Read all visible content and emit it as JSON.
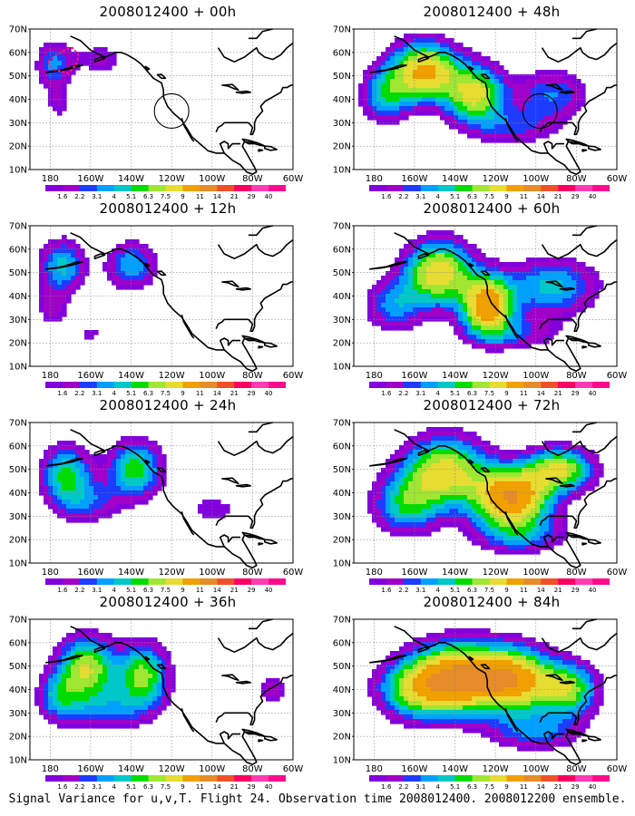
{
  "figure": {
    "caption": "Signal Variance for u,v,T. Flight 24. Observation time 2008012400. 2008012200 ensemble."
  },
  "axes": {
    "lat_ticks": [
      "70N",
      "60N",
      "50N",
      "40N",
      "30N",
      "20N",
      "10N"
    ],
    "lon_ticks": [
      "180",
      "160W",
      "140W",
      "120W",
      "100W",
      "80W",
      "60W"
    ],
    "lon_range": [
      170,
      300
    ],
    "lat_range": [
      10,
      70
    ],
    "grid": true
  },
  "colorbar": {
    "labels": [
      "1.6",
      "2.2",
      "3.1",
      "4",
      "5.1",
      "6.3",
      "7.5",
      "9",
      "11",
      "14",
      "21",
      "29",
      "40"
    ],
    "colors": [
      "#8200dc",
      "#a000c8",
      "#1e3cff",
      "#00a0ff",
      "#00c8c8",
      "#00dc00",
      "#a0e632",
      "#e6dc32",
      "#f0a000",
      "#e68c28",
      "#f05028",
      "#fa0064",
      "#ff3cb4"
    ]
  },
  "chart_data": {
    "type": "heatmap",
    "variable": "Signal Variance for u,v,T",
    "levels": [
      1.6,
      2.2,
      3.1,
      4,
      5.1,
      6.3,
      7.5,
      9,
      11,
      14,
      21,
      29,
      40
    ],
    "panels": [
      {
        "title": "2008012400 + 00h",
        "lead_hours": 0,
        "blobs": [
          [
            182,
            55,
            9,
            10,
            4.2
          ],
          [
            205,
            57,
            13,
            7,
            2.4
          ],
          [
            184,
            38,
            7,
            8,
            2.0
          ],
          [
            290,
            34,
            10,
            5,
            1.2
          ]
        ],
        "circle": [
          240,
          35
        ],
        "target_box": true
      },
      {
        "title": "2008012400 + 12h",
        "lead_hours": 12,
        "blobs": [
          [
            186,
            53,
            11,
            11,
            5.5
          ],
          [
            220,
            53,
            12,
            10,
            5.0
          ],
          [
            181,
            35,
            9,
            9,
            2.4
          ],
          [
            200,
            24,
            8,
            6,
            1.8
          ],
          [
            270,
            42,
            12,
            5,
            1.3
          ]
        ]
      },
      {
        "title": "2008012400 + 24h",
        "lead_hours": 24,
        "blobs": [
          [
            188,
            48,
            12,
            12,
            6.5
          ],
          [
            222,
            50,
            13,
            12,
            7.0
          ],
          [
            198,
            36,
            16,
            9,
            3.5
          ],
          [
            260,
            33,
            14,
            7,
            2.2
          ]
        ]
      },
      {
        "title": "2008012400 + 36h",
        "lead_hours": 36,
        "blobs": [
          [
            198,
            49,
            14,
            13,
            9.0
          ],
          [
            226,
            46,
            12,
            13,
            8.0
          ],
          [
            184,
            37,
            10,
            10,
            4.5
          ],
          [
            208,
            32,
            22,
            9,
            3.5
          ],
          [
            290,
            40,
            9,
            8,
            2.5
          ]
        ]
      },
      {
        "title": "2008012400 + 48h",
        "lead_hours": 48,
        "blobs": [
          [
            205,
            52,
            16,
            12,
            11.5
          ],
          [
            230,
            42,
            14,
            12,
            9.5
          ],
          [
            186,
            42,
            12,
            11,
            5.5
          ],
          [
            268,
            42,
            18,
            11,
            4.0
          ],
          [
            250,
            28,
            20,
            8,
            3.0
          ]
        ],
        "circle": [
          262,
          35
        ]
      },
      {
        "title": "2008012400 + 60h",
        "lead_hours": 60,
        "blobs": [
          [
            212,
            50,
            16,
            13,
            10.5
          ],
          [
            236,
            36,
            12,
            12,
            13.0
          ],
          [
            268,
            44,
            22,
            12,
            5.5
          ],
          [
            190,
            36,
            14,
            11,
            4.5
          ],
          [
            250,
            24,
            22,
            7,
            3.0
          ]
        ]
      },
      {
        "title": "2008012400 + 72h",
        "lead_hours": 72,
        "blobs": [
          [
            215,
            49,
            20,
            14,
            10.0
          ],
          [
            248,
            38,
            18,
            12,
            14.0
          ],
          [
            272,
            50,
            16,
            9,
            9.0
          ],
          [
            196,
            35,
            16,
            12,
            6.0
          ],
          [
            252,
            22,
            22,
            8,
            4.0
          ]
        ]
      },
      {
        "title": "2008012400 + 84h",
        "lead_hours": 84,
        "blobs": [
          [
            222,
            45,
            22,
            14,
            14.0
          ],
          [
            250,
            44,
            18,
            13,
            11.5
          ],
          [
            200,
            40,
            18,
            12,
            7.0
          ],
          [
            276,
            40,
            14,
            11,
            8.0
          ],
          [
            260,
            22,
            22,
            8,
            4.0
          ]
        ]
      }
    ]
  }
}
